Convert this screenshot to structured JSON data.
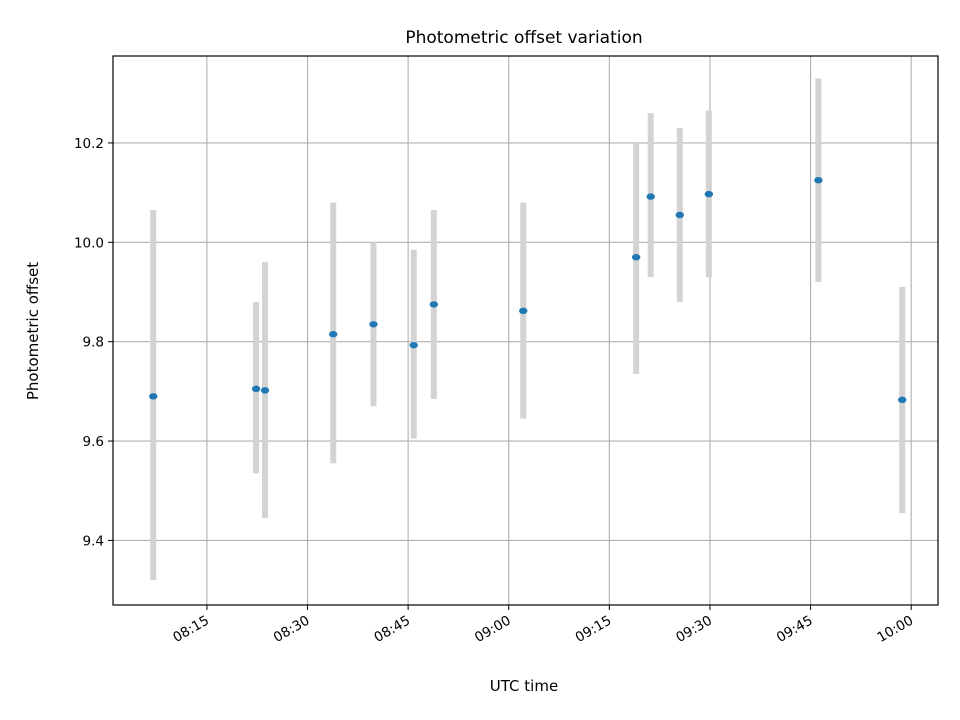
{
  "chart_data": {
    "type": "scatter",
    "title": "Photometric offset variation",
    "xlabel": "UTC time",
    "ylabel": "Photometric offset",
    "x_unit": "HH:MM UTC",
    "xlim": [
      "08:01",
      "10:04"
    ],
    "ylim": [
      9.27,
      10.375
    ],
    "xticks": [
      "08:15",
      "08:30",
      "08:45",
      "09:00",
      "09:15",
      "09:30",
      "09:45",
      "10:00"
    ],
    "yticks": [
      9.4,
      9.6,
      9.8,
      10.0,
      10.2
    ],
    "grid": true,
    "marker_color": "#1f77b4",
    "errorbar_color": "#d3d3d3",
    "points": [
      {
        "x": "08:07:00",
        "y": 9.69,
        "yerr_low": 9.32,
        "yerr_high": 10.065
      },
      {
        "x": "08:22:20",
        "y": 9.705,
        "yerr_low": 9.535,
        "yerr_high": 9.88
      },
      {
        "x": "08:23:40",
        "y": 9.702,
        "yerr_low": 9.445,
        "yerr_high": 9.96
      },
      {
        "x": "08:33:50",
        "y": 9.815,
        "yerr_low": 9.555,
        "yerr_high": 10.08
      },
      {
        "x": "08:39:50",
        "y": 9.835,
        "yerr_low": 9.67,
        "yerr_high": 10.0
      },
      {
        "x": "08:45:50",
        "y": 9.793,
        "yerr_low": 9.605,
        "yerr_high": 9.985
      },
      {
        "x": "08:48:50",
        "y": 9.875,
        "yerr_low": 9.685,
        "yerr_high": 10.065
      },
      {
        "x": "09:02:10",
        "y": 9.862,
        "yerr_low": 9.645,
        "yerr_high": 10.08
      },
      {
        "x": "09:19:00",
        "y": 9.97,
        "yerr_low": 9.735,
        "yerr_high": 10.2
      },
      {
        "x": "09:21:10",
        "y": 10.092,
        "yerr_low": 9.93,
        "yerr_high": 10.26
      },
      {
        "x": "09:25:30",
        "y": 10.055,
        "yerr_low": 9.88,
        "yerr_high": 10.23
      },
      {
        "x": "09:29:50",
        "y": 10.097,
        "yerr_low": 9.93,
        "yerr_high": 10.265
      },
      {
        "x": "09:46:10",
        "y": 10.125,
        "yerr_low": 9.92,
        "yerr_high": 10.33
      },
      {
        "x": "09:58:40",
        "y": 9.683,
        "yerr_low": 9.455,
        "yerr_high": 9.91
      }
    ]
  }
}
